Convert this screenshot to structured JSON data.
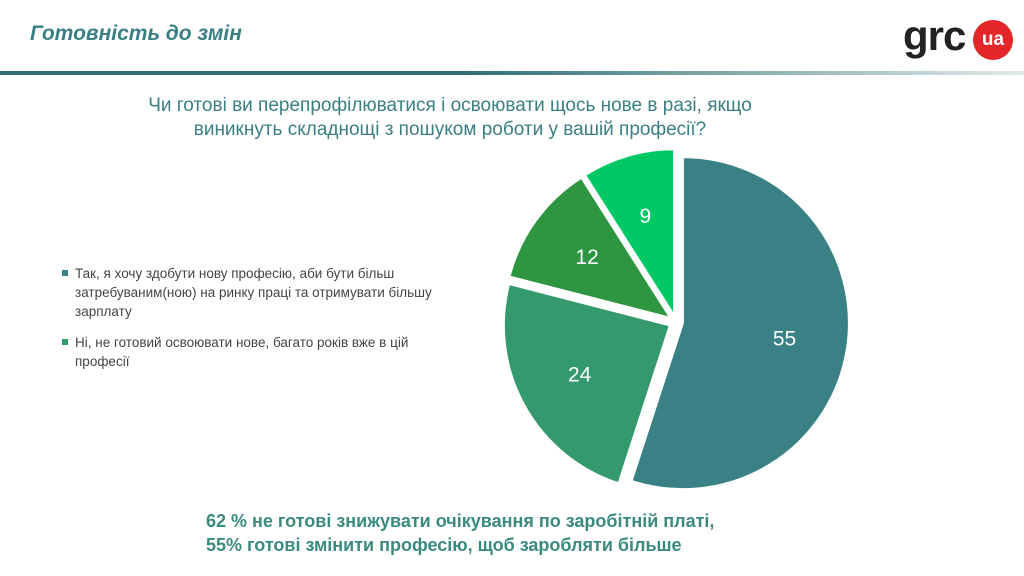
{
  "header": {
    "title": "Готовність до змін",
    "logo_text": "grc",
    "logo_badge": "ua"
  },
  "question": {
    "line1": "Чи готові ви перепрофілюватися і освоювати щось нове в разі, якщо",
    "line2": "виникнуть складнощі з пошуком роботи у вашій професії?"
  },
  "chart_data": {
    "type": "pie",
    "title": "Чи готові ви перепрофілюватися і освоювати щось нове в разі, якщо виникнуть складнощі з пошуком роботи у вашій професії?",
    "legend_position": "left",
    "slices": [
      {
        "value": 55,
        "label": "55",
        "color": "#3a8185",
        "legend": "Так, я хочу здобути нову професію, аби бути більш затребуваним(ною) на ринку праці та отримувати більшу зарплату"
      },
      {
        "value": 24,
        "label": "24",
        "color": "#349a6d",
        "legend": "Ні, не готовий освоювати нове, багато років вже  в цій професії"
      },
      {
        "value": 12,
        "label": "12",
        "color": "#2e9640",
        "legend": ""
      },
      {
        "value": 9,
        "label": "9",
        "color": "#00c864",
        "legend": ""
      }
    ]
  },
  "conclusion": {
    "line1": "62 % не готові знижувати очікування по заробітній платі,",
    "line2": "55% готові змінити професію, щоб заробляти більше"
  }
}
